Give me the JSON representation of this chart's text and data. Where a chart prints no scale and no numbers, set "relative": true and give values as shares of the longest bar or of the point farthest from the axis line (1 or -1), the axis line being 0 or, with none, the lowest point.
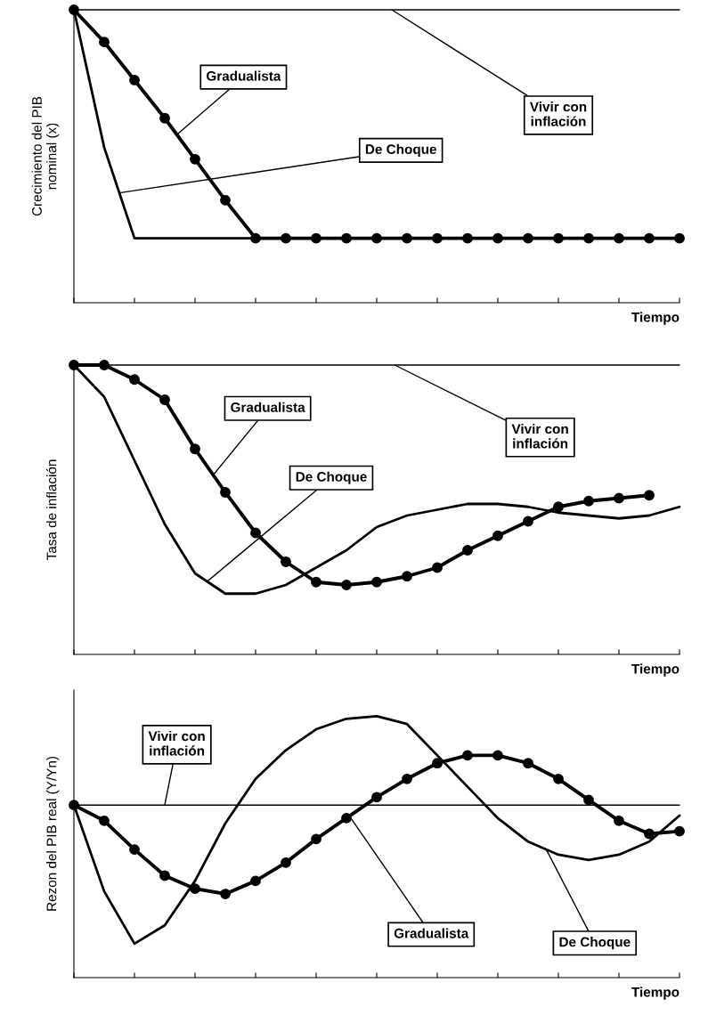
{
  "chart_data": [
    {
      "type": "line",
      "relative": true,
      "xlabel": "Tiempo",
      "ylabel": "Crecimiento del PIB\nnominal (x)",
      "legend": false,
      "grid": false,
      "categories": [
        null,
        null,
        null,
        null,
        null,
        null,
        null,
        null,
        null,
        null,
        null,
        null,
        null,
        null,
        null,
        null,
        null,
        null,
        null,
        null,
        null
      ],
      "series": [
        {
          "name": "Gradualista",
          "color": "#000000",
          "marker": "circle",
          "values": [
            1,
            0.89,
            0.76,
            0.63,
            0.49,
            0.35,
            0.22,
            0.22,
            0.22,
            0.22,
            0.22,
            0.22,
            0.22,
            0.22,
            0.22,
            0.22,
            0.22,
            0.22,
            0.22,
            0.22,
            0.22
          ]
        },
        {
          "name": "De Choque",
          "color": "#000000",
          "marker": "none",
          "values": [
            1,
            0.53,
            0.22,
            0.22,
            0.22,
            0.22,
            0.22,
            0.22,
            0.22,
            0.22,
            0.22,
            0.22,
            0.22,
            0.22,
            0.22,
            0.22,
            0.22,
            0.22,
            0.22,
            0.22,
            0.22
          ]
        },
        {
          "name": "Vivir con\ninflación",
          "color": "#000000",
          "marker": "none",
          "values": [
            1,
            1,
            1,
            1,
            1,
            1,
            1,
            1,
            1,
            1,
            1,
            1,
            1,
            1,
            1,
            1,
            1,
            1,
            1,
            1,
            1
          ]
        }
      ]
    },
    {
      "type": "line",
      "relative": true,
      "xlabel": "Tiempo",
      "ylabel": "Tasa de inflación",
      "legend": false,
      "grid": false,
      "categories": [
        null,
        null,
        null,
        null,
        null,
        null,
        null,
        null,
        null,
        null,
        null,
        null,
        null,
        null,
        null,
        null,
        null,
        null,
        null,
        null,
        null
      ],
      "series": [
        {
          "name": "Gradualista",
          "color": "#000000",
          "marker": "circle",
          "values": [
            1,
            1,
            0.95,
            0.88,
            0.71,
            0.56,
            0.42,
            0.32,
            0.25,
            0.24,
            0.25,
            0.27,
            0.3,
            0.36,
            0.41,
            0.46,
            0.51,
            0.53,
            0.54,
            0.55,
            null
          ]
        },
        {
          "name": "De Choque",
          "color": "#000000",
          "marker": "none",
          "values": [
            1,
            0.89,
            0.67,
            0.45,
            0.28,
            0.21,
            0.21,
            0.24,
            0.3,
            0.36,
            0.44,
            0.48,
            0.5,
            0.52,
            0.52,
            0.51,
            0.49,
            0.48,
            0.47,
            0.48,
            0.51
          ]
        },
        {
          "name": "Vivir con\ninflación",
          "color": "#000000",
          "marker": "none",
          "values": [
            1,
            1,
            1,
            1,
            1,
            1,
            1,
            1,
            1,
            1,
            1,
            1,
            1,
            1,
            1,
            1,
            1,
            1,
            1,
            1,
            1
          ]
        }
      ]
    },
    {
      "type": "line",
      "relative": true,
      "xlabel": "Tiempo",
      "ylabel": "Rezon del PIB real (Y/Yn)",
      "legend": false,
      "grid": false,
      "categories": [
        null,
        null,
        null,
        null,
        null,
        null,
        null,
        null,
        null,
        null,
        null,
        null,
        null,
        null,
        null,
        null,
        null,
        null,
        null,
        null,
        null
      ],
      "series": [
        {
          "name": "Gradualista",
          "color": "#000000",
          "marker": "circle",
          "values": [
            0.66,
            0.6,
            0.49,
            0.39,
            0.34,
            0.32,
            0.37,
            0.44,
            0.53,
            0.61,
            0.69,
            0.76,
            0.82,
            0.85,
            0.85,
            0.82,
            0.76,
            0.68,
            0.6,
            0.55,
            0.56
          ]
        },
        {
          "name": "De Choque",
          "color": "#000000",
          "marker": "none",
          "values": [
            0.66,
            0.33,
            0.13,
            0.2,
            0.37,
            0.59,
            0.76,
            0.87,
            0.95,
            0.99,
            1,
            0.97,
            0.85,
            0.73,
            0.61,
            0.52,
            0.47,
            0.45,
            0.47,
            0.52,
            0.62
          ]
        },
        {
          "name": "Vivir con\ninflación",
          "color": "#000000",
          "marker": "none",
          "values": [
            0.66,
            0.66,
            0.66,
            0.66,
            0.66,
            0.66,
            0.66,
            0.66,
            0.66,
            0.66,
            0.66,
            0.66,
            0.66,
            0.66,
            0.66,
            0.66,
            0.66,
            0.66,
            0.66,
            0.66,
            0.66
          ]
        }
      ]
    }
  ]
}
